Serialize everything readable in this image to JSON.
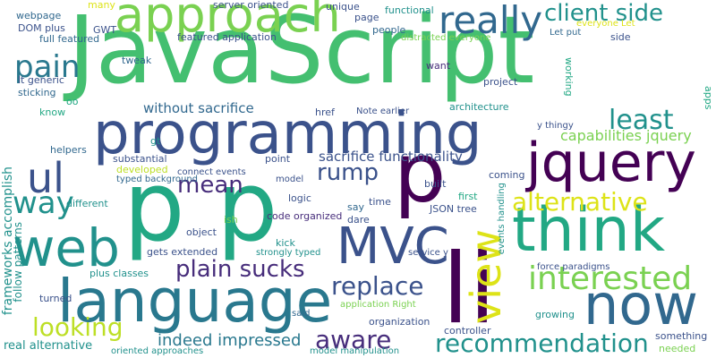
{
  "palette": {
    "dark_purple": "#440154",
    "indigo": "#472d7b",
    "blue_violet": "#3b528b",
    "steel_blue": "#31688e",
    "teal_blue": "#29788e",
    "teal": "#21918c",
    "sea_green": "#22a884",
    "green": "#44bf70",
    "light_green": "#7ad151",
    "yellow_green": "#bddf26",
    "yellow": "#dde318"
  },
  "words": [
    {
      "text": "JavaScript",
      "color": "#44bf70"
    },
    {
      "text": "programming",
      "color": "#3b528b"
    },
    {
      "text": "language",
      "color": "#29788e"
    },
    {
      "text": "approach",
      "color": "#7ad151"
    },
    {
      "text": "really",
      "color": "#31688e"
    },
    {
      "text": "client side",
      "color": "#21918c"
    },
    {
      "text": "p",
      "color": "#22a884"
    },
    {
      "text": "p",
      "color": "#22a884"
    },
    {
      "text": "p",
      "color": "#440154"
    },
    {
      "text": "jquery",
      "color": "#440154"
    },
    {
      "text": "think",
      "color": "#22a884"
    },
    {
      "text": "li",
      "color": "#440154"
    },
    {
      "text": "web",
      "color": "#21918c"
    },
    {
      "text": "MVC",
      "color": "#3b528b"
    },
    {
      "text": "now",
      "color": "#31688e"
    },
    {
      "text": "ul",
      "color": "#3b528b"
    },
    {
      "text": "pain",
      "color": "#29788e"
    },
    {
      "text": "least",
      "color": "#21918c"
    },
    {
      "text": "view",
      "color": "#dde318"
    },
    {
      "text": "interested",
      "color": "#7ad151"
    },
    {
      "text": "alternative",
      "color": "#dde318"
    },
    {
      "text": "recommendation",
      "color": "#21918c"
    },
    {
      "text": "replace",
      "color": "#3b528b"
    },
    {
      "text": "plain sucks",
      "color": "#472d7b"
    },
    {
      "text": "looking",
      "color": "#bddf26"
    },
    {
      "text": "aware",
      "color": "#472d7b"
    },
    {
      "text": "way",
      "color": "#21918c"
    },
    {
      "text": "mean",
      "color": "#472d7b"
    },
    {
      "text": "rump",
      "color": "#3b528b"
    },
    {
      "text": "indeed impressed",
      "color": "#29788e"
    },
    {
      "text": "capabilities jquery",
      "color": "#7ad151"
    },
    {
      "text": "sacrifice functionality",
      "color": "#3b528b"
    },
    {
      "text": "without sacrifice",
      "color": "#31688e"
    },
    {
      "text": "frameworks accomplish",
      "color": "#21918c"
    },
    {
      "text": "follow patterns",
      "color": "#21918c"
    },
    {
      "text": "webpage",
      "color": "#31688e"
    },
    {
      "text": "many",
      "color": "#dde318"
    },
    {
      "text": "server oriented",
      "color": "#3b528b"
    },
    {
      "text": "unique",
      "color": "#3b528b"
    },
    {
      "text": "functional",
      "color": "#21918c"
    },
    {
      "text": "page",
      "color": "#3b528b"
    },
    {
      "text": "people",
      "color": "#31688e"
    },
    {
      "text": "distracted everyone",
      "color": "#7ad151"
    },
    {
      "text": "Let put",
      "color": "#31688e"
    },
    {
      "text": "everyone Let",
      "color": "#dde318"
    },
    {
      "text": "side",
      "color": "#3b528b"
    },
    {
      "text": "DOM plus",
      "color": "#3b528b"
    },
    {
      "text": "GWT",
      "color": "#3b528b"
    },
    {
      "text": "full featured",
      "color": "#31688e"
    },
    {
      "text": "featured application",
      "color": "#3b528b"
    },
    {
      "text": "tweak",
      "color": "#31688e"
    },
    {
      "text": "want",
      "color": "#472d7b"
    },
    {
      "text": "lt generic",
      "color": "#3b528b"
    },
    {
      "text": "oo",
      "color": "#22a884"
    },
    {
      "text": "know",
      "color": "#22a884"
    },
    {
      "text": "sticking",
      "color": "#31688e"
    },
    {
      "text": "project",
      "color": "#3b528b"
    },
    {
      "text": "working",
      "color": "#22a884"
    },
    {
      "text": "apps",
      "color": "#22a884"
    },
    {
      "text": "href",
      "color": "#3b528b"
    },
    {
      "text": "Note earlier",
      "color": "#3b528b"
    },
    {
      "text": "architecture",
      "color": "#21918c"
    },
    {
      "text": "y thingy",
      "color": "#3b528b"
    },
    {
      "text": "gt",
      "color": "#21918c"
    },
    {
      "text": "helpers",
      "color": "#31688e"
    },
    {
      "text": "substantial",
      "color": "#3b528b"
    },
    {
      "text": "point",
      "color": "#3b528b"
    },
    {
      "text": "developed",
      "color": "#bddf26"
    },
    {
      "text": "connect events",
      "color": "#3b528b"
    },
    {
      "text": "coming",
      "color": "#3b528b"
    },
    {
      "text": "model",
      "color": "#3b528b"
    },
    {
      "text": "typed background",
      "color": "#31688e"
    },
    {
      "text": "built",
      "color": "#3b528b"
    },
    {
      "text": "first",
      "color": "#22a884"
    },
    {
      "text": "different",
      "color": "#21918c"
    },
    {
      "text": "logic",
      "color": "#3b528b"
    },
    {
      "text": "say",
      "color": "#31688e"
    },
    {
      "text": "time",
      "color": "#3b528b"
    },
    {
      "text": "JSON tree",
      "color": "#3b528b"
    },
    {
      "text": "code organized",
      "color": "#472d7b"
    },
    {
      "text": "dare",
      "color": "#3b528b"
    },
    {
      "text": "events handling",
      "color": "#21918c"
    },
    {
      "text": "ish",
      "color": "#7ad151"
    },
    {
      "text": "object",
      "color": "#3b528b"
    },
    {
      "text": "kick",
      "color": "#21918c"
    },
    {
      "text": "gets extended",
      "color": "#3b528b"
    },
    {
      "text": "strongly typed",
      "color": "#21918c"
    },
    {
      "text": "plus classes",
      "color": "#21918c"
    },
    {
      "text": "service y",
      "color": "#3b528b"
    },
    {
      "text": "force paradigms",
      "color": "#3b528b"
    },
    {
      "text": "turned",
      "color": "#3b528b"
    },
    {
      "text": "application Right",
      "color": "#7ad151"
    },
    {
      "text": "said",
      "color": "#31688e"
    },
    {
      "text": "organization",
      "color": "#3b528b"
    },
    {
      "text": "growing",
      "color": "#21918c"
    },
    {
      "text": "controller",
      "color": "#3b528b"
    },
    {
      "text": "something",
      "color": "#3b528b"
    },
    {
      "text": "real alternative",
      "color": "#21918c"
    },
    {
      "text": "oriented approaches",
      "color": "#21918c"
    },
    {
      "text": "model manipulation",
      "color": "#21918c"
    },
    {
      "text": "needed",
      "color": "#7ad151"
    }
  ]
}
